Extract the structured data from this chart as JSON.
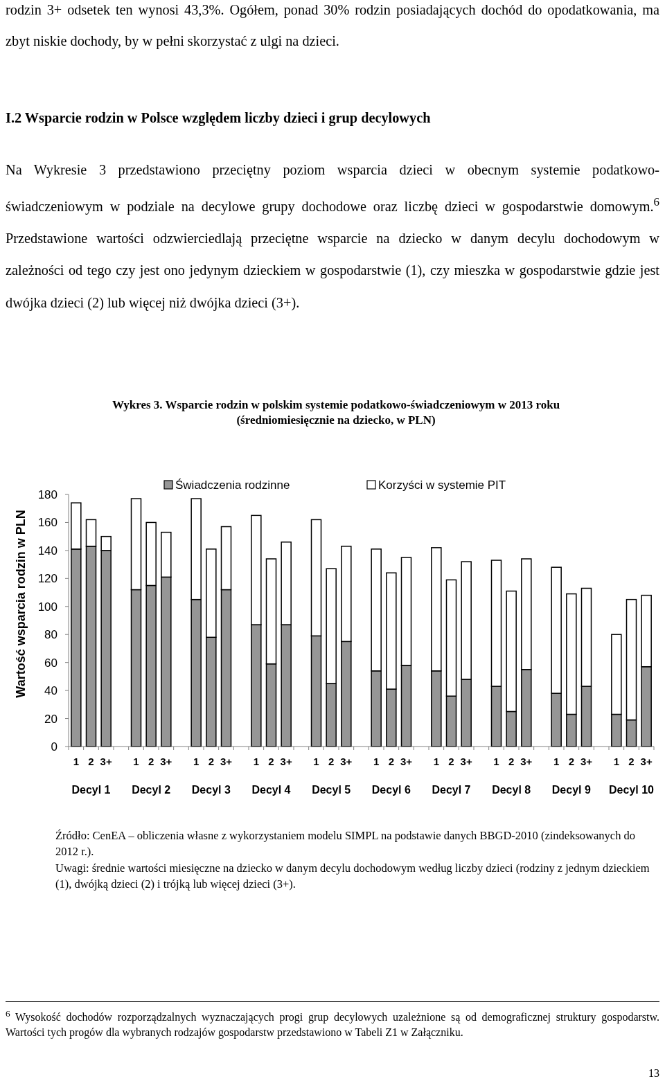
{
  "chart_data": {
    "type": "bar",
    "title": "Wykres 3. Wsparcie rodzin w polskim systemie podatkowo-świadczeniowym w 2013 roku (średniomiesięcznie na dziecko, w PLN)",
    "ylabel": "Wartość wsparcia rodzin w PLN",
    "categories": [
      "1",
      "2",
      "3+",
      null,
      "1",
      "2",
      "3+",
      null,
      "1",
      "2",
      "3+",
      null,
      "1",
      "2",
      "3+",
      null,
      "1",
      "2",
      "3+",
      null,
      "1",
      "2",
      "3+",
      null,
      "1",
      "2",
      "3+",
      null,
      "1",
      "2",
      "3+",
      null,
      "1",
      "2",
      "3+",
      null,
      "1",
      "2",
      "3+"
    ],
    "stacked": true,
    "series": [
      {
        "name": "Świadczenia rodzinne",
        "color": "#969696",
        "values": [
          141,
          143,
          140,
          null,
          112,
          115,
          121,
          null,
          105,
          78,
          112,
          null,
          87,
          59,
          87,
          null,
          79,
          45,
          75,
          null,
          54,
          41,
          58,
          null,
          54,
          36,
          48,
          null,
          43,
          25,
          55,
          null,
          38,
          23,
          43,
          null,
          23,
          19,
          57
        ]
      },
      {
        "name": "Korzyści w systemie PIT",
        "color": "#ffffff",
        "values": [
          33,
          19,
          10,
          null,
          65,
          45,
          32,
          null,
          72,
          63,
          45,
          null,
          78,
          75,
          59,
          null,
          83,
          82,
          68,
          null,
          87,
          83,
          77,
          null,
          88,
          83,
          84,
          null,
          90,
          86,
          79,
          null,
          90,
          86,
          70,
          null,
          57,
          86,
          51
        ]
      }
    ],
    "ylim": [
      0,
      180
    ],
    "yticks": [
      0,
      20,
      40,
      60,
      80,
      100,
      120,
      140,
      160,
      180
    ],
    "legend": "top",
    "annotations": [
      "rodzin 3+ odsetek ten wynosi 43,3%. Ogółem, ponad 30% rodzin posiadających dochód do opodatkowania, ma zbyt niskie dochody, by w pełni skorzystać z ulgi na dzieci.",
      "I.2 Wsparcie rodzin w Polsce względem liczby dzieci i grup decylowych",
      "Na Wykresie 3 przedstawiono przeciętny poziom wsparcia dzieci w obecnym systemie podatkowo-świadczeniowym w podziale na decylowe grupy dochodowe oraz liczbę dzieci w gospodarstwie domowym.$^{6}$ Przedstawione wartości odzwierciedlają przeciętne wsparcie na dziecko w danym decylu dochodowym w zależności od tego czy jest ono jedynym dzieckiem w gospodarstwie (1), czy mieszka w gospodarstwie gdzie jest dwójka dzieci (2) lub więcej niż dwójka dzieci (3+).",
      "Decyl 1",
      "Decyl 2",
      "Decyl 3",
      "Decyl 4",
      "Decyl 5",
      "Decyl 6",
      "Decyl 7",
      "Decyl 8",
      "Decyl 9",
      "Decyl 10",
      "Źródło: CenEA – obliczenia własne z wykorzystaniem modelu SIMPL na podstawie danych BBGD-2010 (zindeksowanych do 2012 r.).",
      "Uwagi: średnie wartości miesięczne na dziecko w danym decylu dochodowym według liczby dzieci (rodziny z jednym dzieckiem (1), dwójką dzieci (2) i trójką lub więcej dzieci (3+).",
      "$^{6}$ Wysokość dochodów rozporządzalnych wyznaczających progi grup decylowych uzależnione są od demograficznej struktury gospodarstw. Wartości tych progów dla wybranych rodzajów gospodarstw przedstawiono w Tabeli Z1 w Załączniku.",
      "13"
    ]
  }
}
